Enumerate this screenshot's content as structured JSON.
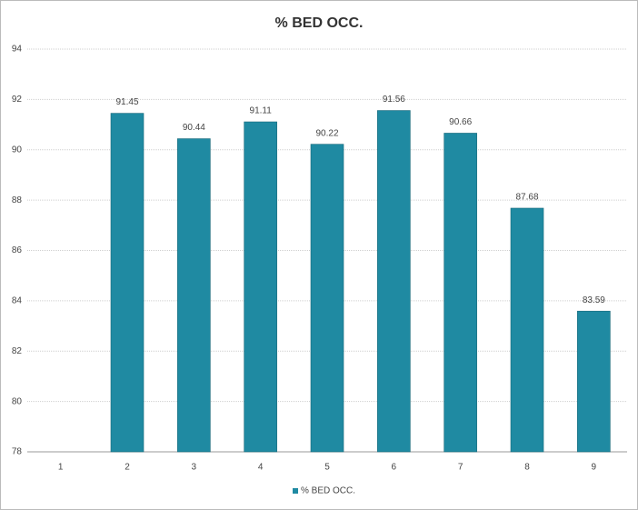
{
  "chart_data": {
    "type": "bar",
    "title": "% BED OCC.",
    "categories": [
      "1",
      "2",
      "3",
      "4",
      "5",
      "6",
      "7",
      "8",
      "9"
    ],
    "series": [
      {
        "name": "% BED OCC.",
        "color": "#1f8aa2",
        "values": [
          null,
          91.45,
          90.44,
          91.11,
          90.22,
          91.56,
          90.66,
          87.68,
          83.59
        ]
      }
    ],
    "ylim": [
      78,
      94
    ],
    "yticks": [
      78,
      80,
      82,
      84,
      86,
      88,
      90,
      92,
      94
    ],
    "grid": true,
    "legend": "bottom"
  }
}
